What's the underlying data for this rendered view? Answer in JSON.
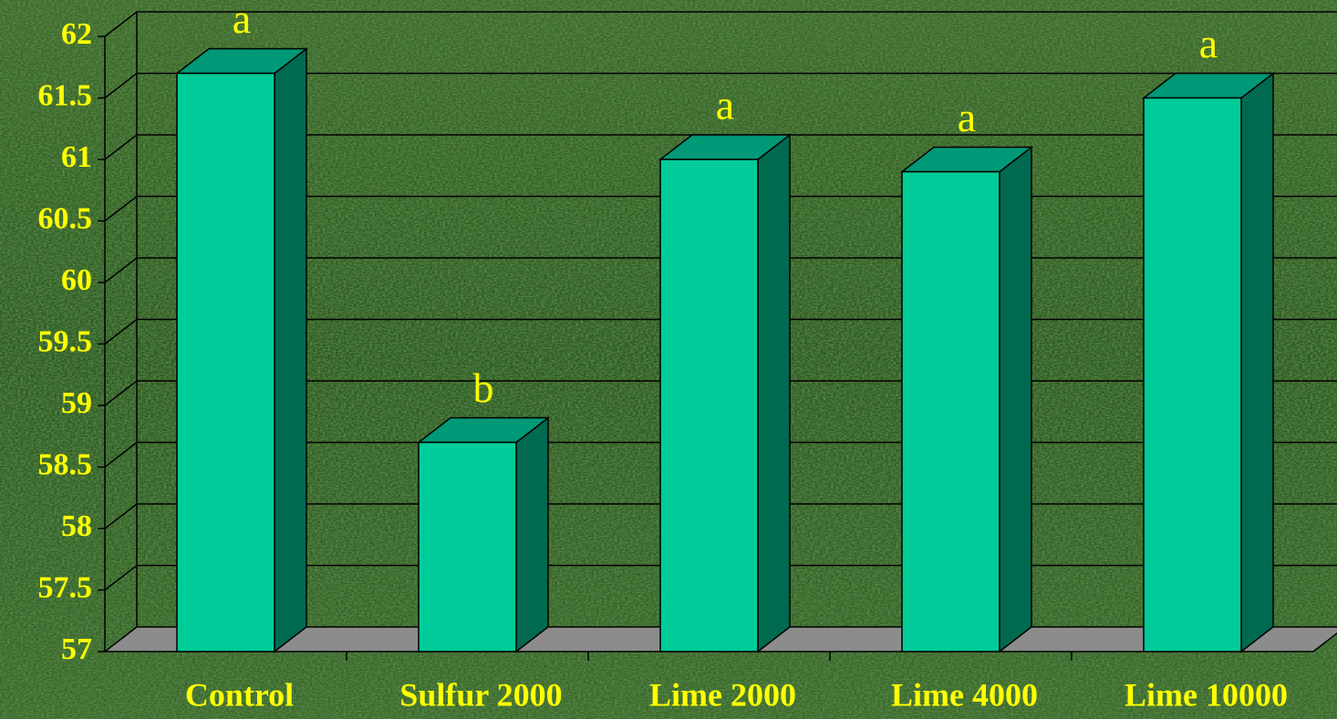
{
  "chart_data": {
    "type": "bar3d",
    "categories": [
      "Control",
      "Sulfur 2000",
      "Lime 2000",
      "Lime 4000",
      "Lime 10000"
    ],
    "values": [
      61.7,
      58.7,
      61.0,
      60.9,
      61.5
    ],
    "annotations": [
      "a",
      "b",
      "a",
      "a",
      "a"
    ],
    "colors": {
      "front": "#00cc99",
      "side": "#006a50",
      "top": "#009977",
      "floor": "#8c8c8c",
      "text": "#ffff00"
    },
    "ylim": [
      57,
      62
    ],
    "yticks": [
      57,
      57.5,
      58,
      58.5,
      59,
      59.5,
      60,
      60.5,
      61,
      61.5,
      62
    ],
    "grid": true
  }
}
